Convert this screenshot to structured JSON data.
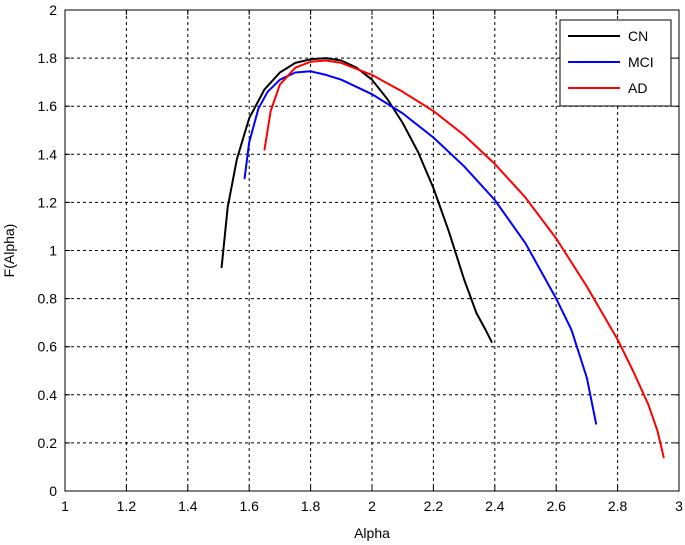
{
  "chart_data": {
    "type": "line",
    "title": "",
    "xlabel": "Alpha",
    "ylabel": "F(Alpha)",
    "xlim": [
      1,
      3
    ],
    "ylim": [
      0,
      2
    ],
    "xticks": [
      "1",
      "1.2",
      "1.4",
      "1.6",
      "1.8",
      "2",
      "2.2",
      "2.4",
      "2.6",
      "2.8",
      "3"
    ],
    "yticks": [
      "0",
      "0.2",
      "0.4",
      "0.6",
      "0.8",
      "1",
      "1.2",
      "1.4",
      "1.6",
      "1.8",
      "2"
    ],
    "grid": true,
    "legend_position": "top-right",
    "series": [
      {
        "name": "CN",
        "color": "#000000",
        "x": [
          1.51,
          1.53,
          1.56,
          1.6,
          1.65,
          1.7,
          1.75,
          1.8,
          1.85,
          1.9,
          1.95,
          2.0,
          2.05,
          2.1,
          2.15,
          2.2,
          2.25,
          2.3,
          2.34,
          2.37,
          2.39
        ],
        "y": [
          0.93,
          1.18,
          1.38,
          1.55,
          1.67,
          1.74,
          1.78,
          1.795,
          1.8,
          1.79,
          1.76,
          1.71,
          1.63,
          1.53,
          1.41,
          1.26,
          1.08,
          0.88,
          0.74,
          0.67,
          0.62
        ]
      },
      {
        "name": "MCI",
        "color": "#0000ff",
        "x": [
          1.585,
          1.6,
          1.63,
          1.66,
          1.7,
          1.75,
          1.8,
          1.85,
          1.9,
          2.0,
          2.1,
          2.2,
          2.3,
          2.4,
          2.5,
          2.6,
          2.65,
          2.7,
          2.73
        ],
        "y": [
          1.3,
          1.45,
          1.59,
          1.66,
          1.71,
          1.74,
          1.745,
          1.73,
          1.71,
          1.65,
          1.57,
          1.47,
          1.35,
          1.21,
          1.03,
          0.8,
          0.67,
          0.47,
          0.28
        ]
      },
      {
        "name": "AD",
        "color": "#ff0000",
        "x": [
          1.65,
          1.67,
          1.7,
          1.75,
          1.8,
          1.85,
          1.9,
          2.0,
          2.1,
          2.2,
          2.3,
          2.4,
          2.5,
          2.6,
          2.7,
          2.8,
          2.85,
          2.9,
          2.93,
          2.95
        ],
        "y": [
          1.42,
          1.58,
          1.69,
          1.76,
          1.785,
          1.79,
          1.78,
          1.73,
          1.66,
          1.58,
          1.48,
          1.36,
          1.22,
          1.05,
          0.85,
          0.63,
          0.5,
          0.36,
          0.25,
          0.14
        ]
      }
    ]
  }
}
